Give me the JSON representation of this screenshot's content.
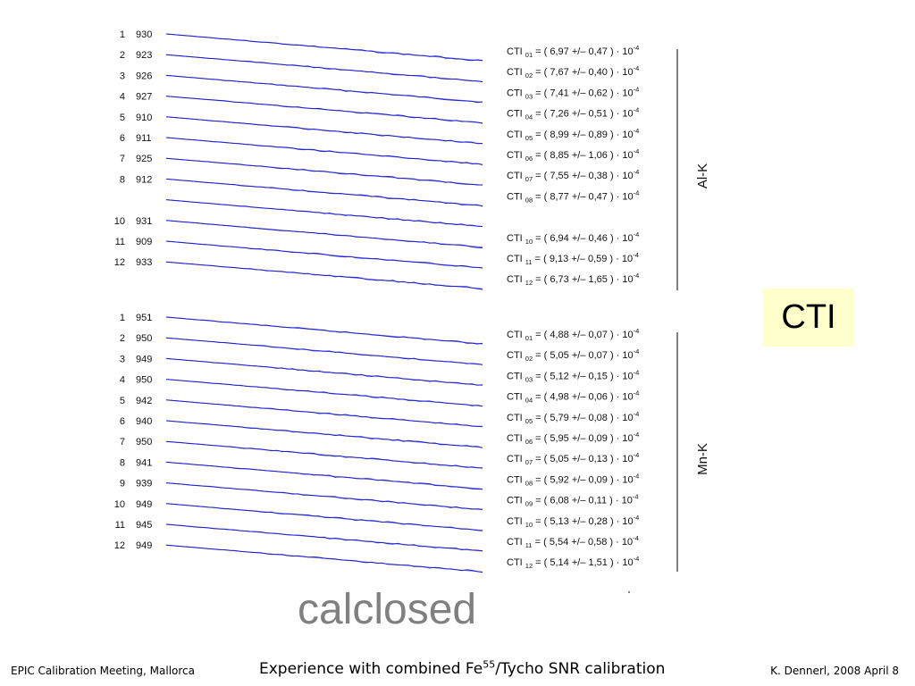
{
  "chart_data": [
    {
      "type": "line",
      "panel": "Al-K",
      "vertical_label": "Al-K",
      "rows": [
        {
          "index": "1",
          "count": "930"
        },
        {
          "index": "2",
          "count": "923"
        },
        {
          "index": "3",
          "count": "926"
        },
        {
          "index": "4",
          "count": "927"
        },
        {
          "index": "5",
          "count": "910"
        },
        {
          "index": "6",
          "count": "911"
        },
        {
          "index": "7",
          "count": "925"
        },
        {
          "index": "8",
          "count": "912"
        },
        {
          "index": "",
          "count": ""
        },
        {
          "index": "10",
          "count": "931"
        },
        {
          "index": "11",
          "count": "909"
        },
        {
          "index": "12",
          "count": "933"
        }
      ],
      "cti": [
        {
          "sub": "01",
          "value": "6,97",
          "err": "0,47"
        },
        {
          "sub": "02",
          "value": "7,67",
          "err": "0,40"
        },
        {
          "sub": "03",
          "value": "7,41",
          "err": "0,62"
        },
        {
          "sub": "04",
          "value": "7,26",
          "err": "0,51"
        },
        {
          "sub": "05",
          "value": "8,99",
          "err": "0,89"
        },
        {
          "sub": "06",
          "value": "8,85",
          "err": "1,06"
        },
        {
          "sub": "07",
          "value": "7,55",
          "err": "0,38"
        },
        {
          "sub": "08",
          "value": "8,77",
          "err": "0,47"
        },
        null,
        {
          "sub": "10",
          "value": "6,94",
          "err": "0,46"
        },
        {
          "sub": "11",
          "value": "9,13",
          "err": "0,59"
        },
        {
          "sub": "12",
          "value": "6,73",
          "err": "1,65"
        }
      ]
    },
    {
      "type": "line",
      "panel": "Mn-K",
      "vertical_label": "Mn-K",
      "rows": [
        {
          "index": "1",
          "count": "951"
        },
        {
          "index": "2",
          "count": "950"
        },
        {
          "index": "3",
          "count": "949"
        },
        {
          "index": "4",
          "count": "950"
        },
        {
          "index": "5",
          "count": "942"
        },
        {
          "index": "6",
          "count": "940"
        },
        {
          "index": "7",
          "count": "950"
        },
        {
          "index": "8",
          "count": "941"
        },
        {
          "index": "9",
          "count": "939"
        },
        {
          "index": "10",
          "count": "949"
        },
        {
          "index": "11",
          "count": "945"
        },
        {
          "index": "12",
          "count": "949"
        }
      ],
      "cti": [
        {
          "sub": "01",
          "value": "4,88",
          "err": "0,07"
        },
        {
          "sub": "02",
          "value": "5,05",
          "err": "0,07"
        },
        {
          "sub": "03",
          "value": "5,12",
          "err": "0,15"
        },
        {
          "sub": "04",
          "value": "4,98",
          "err": "0,06"
        },
        {
          "sub": "05",
          "value": "5,79",
          "err": "0,08"
        },
        {
          "sub": "06",
          "value": "5,95",
          "err": "0,09"
        },
        {
          "sub": "07",
          "value": "5,05",
          "err": "0,13"
        },
        {
          "sub": "08",
          "value": "5,92",
          "err": "0,09"
        },
        {
          "sub": "09",
          "value": "6,08",
          "err": "0,11"
        },
        {
          "sub": "10",
          "value": "5,13",
          "err": "0,28"
        },
        {
          "sub": "11",
          "value": "5,54",
          "err": "0,58"
        },
        {
          "sub": "12",
          "value": "5,14",
          "err": "1,51"
        }
      ]
    }
  ],
  "cti_prefix": "CTI",
  "cti_power": "10",
  "cti_exponent": "-4",
  "line_color": "#1c1ccc",
  "fit_color": "#7777ee",
  "side_box": {
    "label": "CTI",
    "color": "#ffffcc"
  },
  "stamp": "calclosed",
  "footer": {
    "left": "EPIC Calibration Meeting, Mallorca",
    "center_before": "Experience with combined Fe",
    "center_sup": "55",
    "center_after": "/Tycho SNR calibration",
    "right": "K. Dennerl, 2008 April 8"
  }
}
